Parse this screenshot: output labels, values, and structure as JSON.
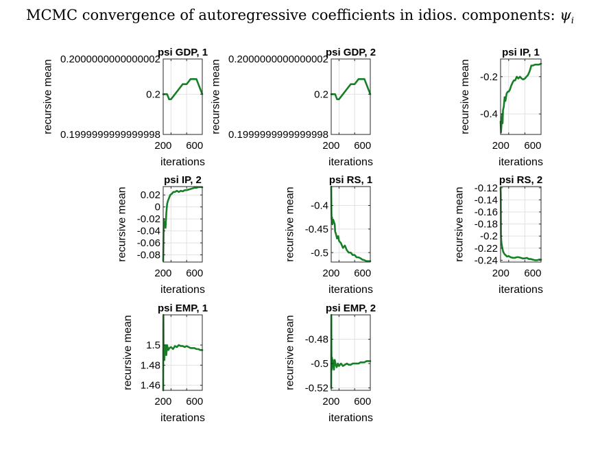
{
  "figure": {
    "title": "MCMC convergence of autoregressive coefficients in idios. components: ",
    "title_symbol": "ψ",
    "title_subscript": "i"
  },
  "colors": {
    "line": "#157f26",
    "grid": "#e2e2e2",
    "axis": "#262626",
    "text": "#000000"
  },
  "chart_data": [
    {
      "type": "line",
      "title": "psi GDP, 1",
      "xlabel": "iterations",
      "ylabel": "recursive mean",
      "xlim": [
        0,
        1000
      ],
      "ylim": [
        0.1999999999999998,
        0.2000000000000002
      ],
      "xticks": [
        200,
        600
      ],
      "xtick_labels": [
        "200",
        "600"
      ],
      "yticks": [
        0.1999999999999998,
        0.2,
        0.2000000000000002
      ],
      "ytick_labels": [
        "0.1999999999999998",
        "0.2",
        "0.2000000000000002"
      ],
      "grid": true,
      "series": [
        {
          "x": [
            0,
            50,
            100,
            150,
            200,
            300,
            400,
            500,
            600,
            700,
            800,
            850,
            900,
            950,
            1000
          ],
          "y": [
            0.2,
            0.2,
            0.2,
            0.19999999999999998,
            0.19999999999999998,
            0.2,
            0.20000000000000004,
            0.20000000000000007,
            0.20000000000000007,
            0.2000000000000001,
            0.2000000000000001,
            0.2000000000000001,
            0.20000000000000007,
            0.20000000000000004,
            0.2
          ]
        }
      ]
    },
    {
      "type": "line",
      "title": "psi GDP, 2",
      "xlabel": "iterations",
      "ylabel": "recursive mean",
      "xlim": [
        0,
        1000
      ],
      "ylim": [
        0.1999999999999998,
        0.2000000000000002
      ],
      "xticks": [
        200,
        600
      ],
      "xtick_labels": [
        "200",
        "600"
      ],
      "yticks": [
        0.1999999999999998,
        0.2,
        0.2000000000000002
      ],
      "ytick_labels": [
        "0.1999999999999998",
        "0.2",
        "0.2000000000000002"
      ],
      "grid": true,
      "series": [
        {
          "x": [
            0,
            50,
            100,
            150,
            200,
            300,
            400,
            500,
            600,
            700,
            800,
            850,
            900,
            950,
            1000
          ],
          "y": [
            0.2,
            0.2,
            0.2,
            0.19999999999999998,
            0.19999999999999998,
            0.2,
            0.20000000000000004,
            0.20000000000000007,
            0.20000000000000007,
            0.2000000000000001,
            0.2000000000000001,
            0.2000000000000001,
            0.20000000000000007,
            0.20000000000000004,
            0.2
          ]
        }
      ]
    },
    {
      "type": "line",
      "title": "psi IP, 1",
      "xlabel": "iterations",
      "ylabel": "recursive mean",
      "xlim": [
        0,
        1000
      ],
      "ylim": [
        -0.51,
        -0.105
      ],
      "xticks": [
        200,
        600
      ],
      "xtick_labels": [
        "200",
        "600"
      ],
      "yticks": [
        -0.4,
        -0.2
      ],
      "ytick_labels": [
        "-0.4",
        "-0.2"
      ],
      "grid": true,
      "series": [
        {
          "x": [
            0,
            10,
            20,
            30,
            40,
            50,
            60,
            80,
            100,
            120,
            150,
            180,
            200,
            230,
            260,
            300,
            330,
            360,
            400,
            440,
            480,
            520,
            560,
            600,
            640,
            680,
            720,
            760,
            800,
            850,
            900,
            950,
            1000
          ],
          "y": [
            -0.44,
            -0.5,
            -0.47,
            -0.42,
            -0.4,
            -0.45,
            -0.38,
            -0.36,
            -0.31,
            -0.33,
            -0.29,
            -0.28,
            -0.28,
            -0.27,
            -0.25,
            -0.23,
            -0.22,
            -0.22,
            -0.2,
            -0.21,
            -0.2,
            -0.21,
            -0.215,
            -0.21,
            -0.2,
            -0.19,
            -0.17,
            -0.14,
            -0.14,
            -0.135,
            -0.135,
            -0.135,
            -0.13
          ]
        }
      ]
    },
    {
      "type": "line",
      "title": "psi IP, 2",
      "xlabel": "iterations",
      "ylabel": "recursive mean",
      "xlim": [
        0,
        1000
      ],
      "ylim": [
        -0.092,
        0.034
      ],
      "xticks": [
        200,
        600
      ],
      "xtick_labels": [
        "200",
        "600"
      ],
      "yticks": [
        -0.08,
        -0.06,
        -0.04,
        -0.02,
        0,
        0.02
      ],
      "ytick_labels": [
        "-0.08",
        "-0.06",
        "-0.04",
        "-0.02",
        "0",
        "0.02"
      ],
      "grid": true,
      "series": [
        {
          "x": [
            0,
            5,
            15,
            25,
            40,
            60,
            80,
            100,
            120,
            150,
            180,
            220,
            260,
            300,
            350,
            400,
            450,
            500,
            550,
            600,
            650,
            700,
            750,
            800,
            850,
            900,
            950,
            1000
          ],
          "y": [
            -0.09,
            -0.07,
            -0.02,
            -0.03,
            -0.025,
            -0.035,
            -0.01,
            0.005,
            0.01,
            0.015,
            0.02,
            0.022,
            0.025,
            0.025,
            0.027,
            0.025,
            0.027,
            0.026,
            0.028,
            0.028,
            0.029,
            0.03,
            0.031,
            0.032,
            0.032,
            0.033,
            0.033,
            0.033
          ]
        }
      ]
    },
    {
      "type": "line",
      "title": "psi RS, 1",
      "xlabel": "iterations",
      "ylabel": "recursive mean",
      "xlim": [
        0,
        1000
      ],
      "ylim": [
        -0.52,
        -0.36
      ],
      "xticks": [
        200,
        600
      ],
      "xtick_labels": [
        "200",
        "600"
      ],
      "yticks": [
        -0.5,
        -0.45,
        -0.4
      ],
      "ytick_labels": [
        "-0.5",
        "-0.45",
        "-0.4"
      ],
      "grid": true,
      "series": [
        {
          "x": [
            0,
            5,
            10,
            20,
            30,
            50,
            70,
            90,
            100,
            120,
            150,
            180,
            200,
            250,
            300,
            350,
            400,
            450,
            500,
            550,
            600,
            650,
            700,
            750,
            800,
            850,
            900,
            950,
            1000
          ],
          "y": [
            -0.36,
            -0.41,
            -0.43,
            -0.425,
            -0.44,
            -0.43,
            -0.435,
            -0.44,
            -0.455,
            -0.46,
            -0.47,
            -0.465,
            -0.475,
            -0.48,
            -0.49,
            -0.485,
            -0.495,
            -0.5,
            -0.5,
            -0.505,
            -0.505,
            -0.51,
            -0.51,
            -0.512,
            -0.515,
            -0.516,
            -0.518,
            -0.518,
            -0.518
          ]
        }
      ]
    },
    {
      "type": "line",
      "title": "psi RS, 2",
      "xlabel": "iterations",
      "ylabel": "recursive mean",
      "xlim": [
        0,
        1000
      ],
      "ylim": [
        -0.243,
        -0.118
      ],
      "xticks": [
        200,
        600
      ],
      "xtick_labels": [
        "200",
        "600"
      ],
      "yticks": [
        -0.24,
        -0.22,
        -0.2,
        -0.18,
        -0.16,
        -0.14,
        -0.12
      ],
      "ytick_labels": [
        "-0.24",
        "-0.22",
        "-0.2",
        "-0.18",
        "-0.16",
        "-0.14",
        "-0.12"
      ],
      "grid": true,
      "series": [
        {
          "x": [
            0,
            5,
            10,
            20,
            30,
            45,
            60,
            80,
            100,
            130,
            160,
            200,
            250,
            300,
            350,
            400,
            450,
            500,
            550,
            600,
            650,
            700,
            750,
            800,
            850,
            900,
            950,
            1000
          ],
          "y": [
            -0.12,
            -0.13,
            -0.2,
            -0.21,
            -0.215,
            -0.22,
            -0.225,
            -0.228,
            -0.23,
            -0.232,
            -0.234,
            -0.233,
            -0.235,
            -0.236,
            -0.236,
            -0.235,
            -0.235,
            -0.236,
            -0.237,
            -0.237,
            -0.236,
            -0.238,
            -0.238,
            -0.239,
            -0.24,
            -0.24,
            -0.239,
            -0.239
          ]
        }
      ]
    },
    {
      "type": "line",
      "title": "psi EMP, 1",
      "xlabel": "iterations",
      "ylabel": "recursive mean",
      "xlim": [
        0,
        1000
      ],
      "ylim": [
        1.455,
        1.53
      ],
      "xticks": [
        200,
        600
      ],
      "xtick_labels": [
        "200",
        "600"
      ],
      "yticks": [
        1.46,
        1.48,
        1.5
      ],
      "ytick_labels": [
        "1.46",
        "1.48",
        "1.5"
      ],
      "grid": true,
      "series": [
        {
          "x": [
            0,
            3,
            6,
            10,
            15,
            20,
            30,
            40,
            60,
            80,
            100,
            130,
            160,
            200,
            250,
            300,
            350,
            400,
            450,
            500,
            550,
            600,
            650,
            700,
            750,
            800,
            850,
            900,
            950,
            1000
          ],
          "y": [
            1.455,
            1.52,
            1.53,
            1.49,
            1.5,
            1.495,
            1.485,
            1.495,
            1.5,
            1.49,
            1.5,
            1.495,
            1.497,
            1.498,
            1.496,
            1.499,
            1.498,
            1.5,
            1.499,
            1.499,
            1.498,
            1.499,
            1.498,
            1.497,
            1.497,
            1.497,
            1.496,
            1.496,
            1.495,
            1.495
          ]
        }
      ]
    },
    {
      "type": "line",
      "title": "psi EMP, 2",
      "xlabel": "iterations",
      "ylabel": "recursive mean",
      "xlim": [
        0,
        1000
      ],
      "ylim": [
        -0.522,
        -0.46
      ],
      "xticks": [
        200,
        600
      ],
      "xtick_labels": [
        "200",
        "600"
      ],
      "yticks": [
        -0.52,
        -0.5,
        -0.48
      ],
      "ytick_labels": [
        "-0.52",
        "-0.5",
        "-0.48"
      ],
      "grid": true,
      "series": [
        {
          "x": [
            0,
            3,
            6,
            10,
            15,
            20,
            30,
            40,
            50,
            70,
            90,
            110,
            140,
            170,
            200,
            250,
            300,
            350,
            400,
            450,
            500,
            550,
            600,
            650,
            700,
            750,
            800,
            850,
            900,
            950,
            1000
          ],
          "y": [
            -0.52,
            -0.46,
            -0.49,
            -0.5,
            -0.505,
            -0.495,
            -0.5,
            -0.497,
            -0.5,
            -0.505,
            -0.497,
            -0.5,
            -0.503,
            -0.5,
            -0.502,
            -0.5,
            -0.502,
            -0.501,
            -0.5,
            -0.501,
            -0.501,
            -0.5,
            -0.5,
            -0.5,
            -0.5,
            -0.499,
            -0.499,
            -0.499,
            -0.498,
            -0.498,
            -0.498
          ]
        }
      ]
    }
  ]
}
